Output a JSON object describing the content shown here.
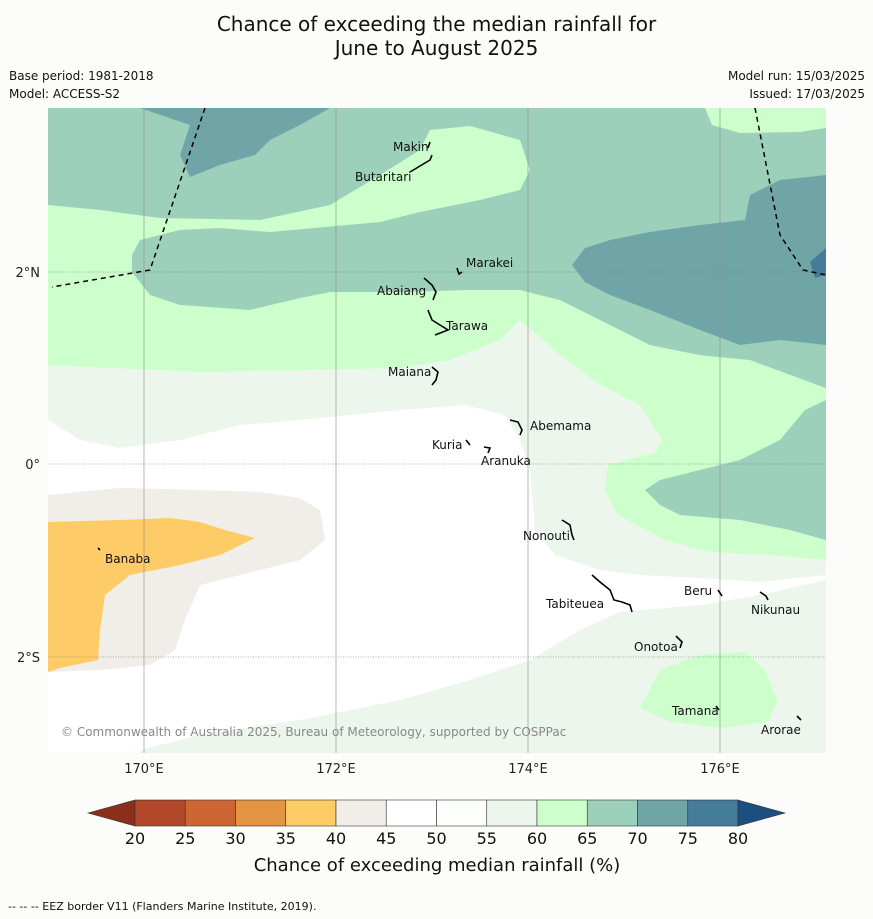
{
  "title_line1": "Chance of exceeding the median rainfall for",
  "title_line2": "June to August 2025",
  "base_period": "Base period: 1981-2018",
  "model": "Model: ACCESS-S2",
  "model_run": "Model run: 15/03/2025",
  "issued": "Issued: 17/03/2025",
  "copyright": "© Commonwealth of Australia 2025, Bureau of Meteorology, supported by COSPPac",
  "footer": "--  --  -- EEZ border V11 (Flanders Marine Institute, 2019).",
  "lat_labels": [
    "2°N",
    "0°",
    "2°S"
  ],
  "lon_labels": [
    "170°E",
    "172°E",
    "174°E",
    "176°E"
  ],
  "islands": [
    "Makin",
    "Butaritari",
    "Marakei",
    "Abaiang",
    "Tarawa",
    "Maiana",
    "Abemama",
    "Kuria",
    "Aranuka",
    "Banaba",
    "Nonouti",
    "Beru",
    "Tabiteuea",
    "Nikunau",
    "Onotoa",
    "Tamana",
    "Arorae"
  ],
  "colorbar": {
    "title": "Chance of exceeding median rainfall (%)",
    "ticks": [
      "20",
      "25",
      "30",
      "35",
      "40",
      "45",
      "50",
      "55",
      "60",
      "65",
      "70",
      "75",
      "80"
    ],
    "colors": [
      "#8b2f1c",
      "#b1482a",
      "#cc6632",
      "#e39544",
      "#fecc66",
      "#f1ede8",
      "#ffffff",
      "#fdfffd",
      "#edf6ec",
      "#ccffcc",
      "#9dd0ba",
      "#70a5a8",
      "#447c99",
      "#1d4e80"
    ]
  }
}
